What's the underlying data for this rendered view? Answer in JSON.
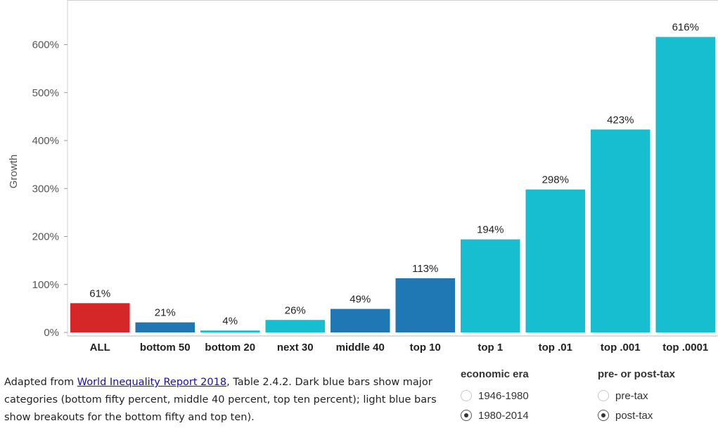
{
  "chart_data": {
    "type": "bar",
    "categories": [
      "ALL",
      "bottom 50",
      "bottom 20",
      "next 30",
      "middle 40",
      "top 10",
      "top 1",
      "top .01",
      "top .001",
      "top .0001"
    ],
    "values": [
      61,
      21,
      4,
      26,
      49,
      113,
      194,
      298,
      423,
      616
    ],
    "value_labels": [
      "61%",
      "21%",
      "4%",
      "26%",
      "49%",
      "113%",
      "194%",
      "298%",
      "423%",
      "616%"
    ],
    "bar_colors": [
      "#d62728",
      "#1f77b4",
      "#17becf",
      "#17becf",
      "#1f77b4",
      "#1f77b4",
      "#17becf",
      "#17becf",
      "#17becf",
      "#17becf"
    ],
    "ylabel": "Growth",
    "yticks": [
      0,
      100,
      200,
      300,
      400,
      500,
      600
    ],
    "ytick_labels": [
      "0%",
      "100%",
      "200%",
      "300%",
      "400%",
      "500%",
      "600%"
    ],
    "ylim": [
      0,
      660
    ],
    "grid": false
  },
  "caption": {
    "before_link": "Adapted from ",
    "link_text": "World Inequality Report 2018",
    "after_link": ", Table 2.4.2.  Dark blue bars show major categories (bottom fifty percent, middle 40 percent, top ten percent); light blue bars show breakouts for the bottom fifty and top ten)."
  },
  "controls": {
    "era": {
      "title": "economic era",
      "options": [
        {
          "label": "1946-1980",
          "checked": false
        },
        {
          "label": "1980-2014",
          "checked": true
        }
      ]
    },
    "tax": {
      "title": "pre- or post-tax",
      "options": [
        {
          "label": "pre-tax",
          "checked": false
        },
        {
          "label": "post-tax",
          "checked": true
        }
      ]
    }
  }
}
